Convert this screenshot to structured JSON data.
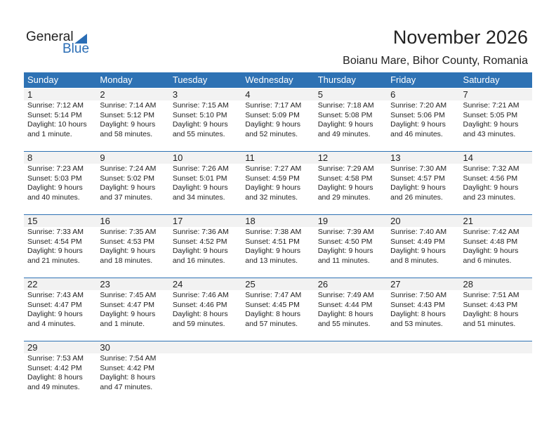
{
  "logo": {
    "text1": "General",
    "text2": "Blue"
  },
  "title": "November 2026",
  "location": "Boianu Mare, Bihor County, Romania",
  "weekdays": [
    "Sunday",
    "Monday",
    "Tuesday",
    "Wednesday",
    "Thursday",
    "Friday",
    "Saturday"
  ],
  "days": [
    {
      "day": "1",
      "sunrise": "Sunrise: 7:12 AM",
      "sunset": "Sunset: 5:14 PM",
      "daylight1": "Daylight: 10 hours",
      "daylight2": "and 1 minute."
    },
    {
      "day": "2",
      "sunrise": "Sunrise: 7:14 AM",
      "sunset": "Sunset: 5:12 PM",
      "daylight1": "Daylight: 9 hours",
      "daylight2": "and 58 minutes."
    },
    {
      "day": "3",
      "sunrise": "Sunrise: 7:15 AM",
      "sunset": "Sunset: 5:10 PM",
      "daylight1": "Daylight: 9 hours",
      "daylight2": "and 55 minutes."
    },
    {
      "day": "4",
      "sunrise": "Sunrise: 7:17 AM",
      "sunset": "Sunset: 5:09 PM",
      "daylight1": "Daylight: 9 hours",
      "daylight2": "and 52 minutes."
    },
    {
      "day": "5",
      "sunrise": "Sunrise: 7:18 AM",
      "sunset": "Sunset: 5:08 PM",
      "daylight1": "Daylight: 9 hours",
      "daylight2": "and 49 minutes."
    },
    {
      "day": "6",
      "sunrise": "Sunrise: 7:20 AM",
      "sunset": "Sunset: 5:06 PM",
      "daylight1": "Daylight: 9 hours",
      "daylight2": "and 46 minutes."
    },
    {
      "day": "7",
      "sunrise": "Sunrise: 7:21 AM",
      "sunset": "Sunset: 5:05 PM",
      "daylight1": "Daylight: 9 hours",
      "daylight2": "and 43 minutes."
    },
    {
      "day": "8",
      "sunrise": "Sunrise: 7:23 AM",
      "sunset": "Sunset: 5:03 PM",
      "daylight1": "Daylight: 9 hours",
      "daylight2": "and 40 minutes."
    },
    {
      "day": "9",
      "sunrise": "Sunrise: 7:24 AM",
      "sunset": "Sunset: 5:02 PM",
      "daylight1": "Daylight: 9 hours",
      "daylight2": "and 37 minutes."
    },
    {
      "day": "10",
      "sunrise": "Sunrise: 7:26 AM",
      "sunset": "Sunset: 5:01 PM",
      "daylight1": "Daylight: 9 hours",
      "daylight2": "and 34 minutes."
    },
    {
      "day": "11",
      "sunrise": "Sunrise: 7:27 AM",
      "sunset": "Sunset: 4:59 PM",
      "daylight1": "Daylight: 9 hours",
      "daylight2": "and 32 minutes."
    },
    {
      "day": "12",
      "sunrise": "Sunrise: 7:29 AM",
      "sunset": "Sunset: 4:58 PM",
      "daylight1": "Daylight: 9 hours",
      "daylight2": "and 29 minutes."
    },
    {
      "day": "13",
      "sunrise": "Sunrise: 7:30 AM",
      "sunset": "Sunset: 4:57 PM",
      "daylight1": "Daylight: 9 hours",
      "daylight2": "and 26 minutes."
    },
    {
      "day": "14",
      "sunrise": "Sunrise: 7:32 AM",
      "sunset": "Sunset: 4:56 PM",
      "daylight1": "Daylight: 9 hours",
      "daylight2": "and 23 minutes."
    },
    {
      "day": "15",
      "sunrise": "Sunrise: 7:33 AM",
      "sunset": "Sunset: 4:54 PM",
      "daylight1": "Daylight: 9 hours",
      "daylight2": "and 21 minutes."
    },
    {
      "day": "16",
      "sunrise": "Sunrise: 7:35 AM",
      "sunset": "Sunset: 4:53 PM",
      "daylight1": "Daylight: 9 hours",
      "daylight2": "and 18 minutes."
    },
    {
      "day": "17",
      "sunrise": "Sunrise: 7:36 AM",
      "sunset": "Sunset: 4:52 PM",
      "daylight1": "Daylight: 9 hours",
      "daylight2": "and 16 minutes."
    },
    {
      "day": "18",
      "sunrise": "Sunrise: 7:38 AM",
      "sunset": "Sunset: 4:51 PM",
      "daylight1": "Daylight: 9 hours",
      "daylight2": "and 13 minutes."
    },
    {
      "day": "19",
      "sunrise": "Sunrise: 7:39 AM",
      "sunset": "Sunset: 4:50 PM",
      "daylight1": "Daylight: 9 hours",
      "daylight2": "and 11 minutes."
    },
    {
      "day": "20",
      "sunrise": "Sunrise: 7:40 AM",
      "sunset": "Sunset: 4:49 PM",
      "daylight1": "Daylight: 9 hours",
      "daylight2": "and 8 minutes."
    },
    {
      "day": "21",
      "sunrise": "Sunrise: 7:42 AM",
      "sunset": "Sunset: 4:48 PM",
      "daylight1": "Daylight: 9 hours",
      "daylight2": "and 6 minutes."
    },
    {
      "day": "22",
      "sunrise": "Sunrise: 7:43 AM",
      "sunset": "Sunset: 4:47 PM",
      "daylight1": "Daylight: 9 hours",
      "daylight2": "and 4 minutes."
    },
    {
      "day": "23",
      "sunrise": "Sunrise: 7:45 AM",
      "sunset": "Sunset: 4:47 PM",
      "daylight1": "Daylight: 9 hours",
      "daylight2": "and 1 minute."
    },
    {
      "day": "24",
      "sunrise": "Sunrise: 7:46 AM",
      "sunset": "Sunset: 4:46 PM",
      "daylight1": "Daylight: 8 hours",
      "daylight2": "and 59 minutes."
    },
    {
      "day": "25",
      "sunrise": "Sunrise: 7:47 AM",
      "sunset": "Sunset: 4:45 PM",
      "daylight1": "Daylight: 8 hours",
      "daylight2": "and 57 minutes."
    },
    {
      "day": "26",
      "sunrise": "Sunrise: 7:49 AM",
      "sunset": "Sunset: 4:44 PM",
      "daylight1": "Daylight: 8 hours",
      "daylight2": "and 55 minutes."
    },
    {
      "day": "27",
      "sunrise": "Sunrise: 7:50 AM",
      "sunset": "Sunset: 4:43 PM",
      "daylight1": "Daylight: 8 hours",
      "daylight2": "and 53 minutes."
    },
    {
      "day": "28",
      "sunrise": "Sunrise: 7:51 AM",
      "sunset": "Sunset: 4:43 PM",
      "daylight1": "Daylight: 8 hours",
      "daylight2": "and 51 minutes."
    },
    {
      "day": "29",
      "sunrise": "Sunrise: 7:53 AM",
      "sunset": "Sunset: 4:42 PM",
      "daylight1": "Daylight: 8 hours",
      "daylight2": "and 49 minutes."
    },
    {
      "day": "30",
      "sunrise": "Sunrise: 7:54 AM",
      "sunset": "Sunset: 4:42 PM",
      "daylight1": "Daylight: 8 hours",
      "daylight2": "and 47 minutes."
    }
  ],
  "colors": {
    "header": "#2e72b4",
    "brand_blue": "#2a6db5",
    "day_strip": "#f2f2f2"
  }
}
